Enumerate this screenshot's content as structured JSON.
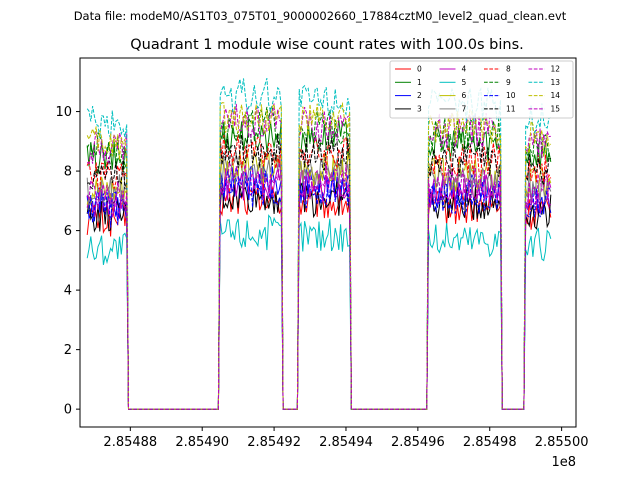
{
  "chart_data": {
    "type": "line",
    "suptitle": "Data file: modeM0/AS1T03_075T01_9000002660_17884cztM0_level2_quad_clean.evt",
    "title": "Quadrant 1 module wise count rates with 100.0s bins.",
    "xlabel": "",
    "ylabel": "",
    "x_offset_label": "1e8",
    "x_ticks": [
      "2.85488",
      "2.85490",
      "2.85492",
      "2.85494",
      "2.85496",
      "2.85498",
      "2.85500"
    ],
    "y_ticks": [
      "0",
      "2",
      "4",
      "6",
      "8",
      "10"
    ],
    "xlim": [
      2.854866,
      2.855004
    ],
    "ylim": [
      -0.6,
      11.8
    ],
    "grid": false,
    "legend_position": "top-right",
    "legend_ncol": 4,
    "active_segments": [
      [
        2.854868,
        2.854879
      ],
      [
        2.854905,
        2.854922
      ],
      [
        2.854927,
        2.854941
      ],
      [
        2.854963,
        2.854983
      ],
      [
        2.85499,
        2.854997
      ]
    ],
    "series": [
      {
        "name": "0",
        "color": "#ff0000",
        "dash": "solid",
        "level": 6.4
      },
      {
        "name": "1",
        "color": "#008000",
        "dash": "solid",
        "level": 8.4
      },
      {
        "name": "2",
        "color": "#0000ff",
        "dash": "solid",
        "level": 6.9
      },
      {
        "name": "3",
        "color": "#000000",
        "dash": "solid",
        "level": 6.5
      },
      {
        "name": "4",
        "color": "#bf00bf",
        "dash": "solid",
        "level": 6.9
      },
      {
        "name": "5",
        "color": "#00bfbf",
        "dash": "solid",
        "level": 5.4
      },
      {
        "name": "6",
        "color": "#bfbf00",
        "dash": "solid",
        "level": 7.4
      },
      {
        "name": "7",
        "color": "#808080",
        "dash": "solid",
        "level": 7.3
      },
      {
        "name": "8",
        "color": "#ff0000",
        "dash": "dashed",
        "level": 7.9
      },
      {
        "name": "9",
        "color": "#008000",
        "dash": "dashed",
        "level": 8.7
      },
      {
        "name": "10",
        "color": "#0000ff",
        "dash": "dashed",
        "level": 6.7
      },
      {
        "name": "11",
        "color": "#000000",
        "dash": "dashed",
        "level": 7.9
      },
      {
        "name": "12",
        "color": "#bf00bf",
        "dash": "dashed",
        "level": 8.8
      },
      {
        "name": "13",
        "color": "#00bfbf",
        "dash": "dashed",
        "level": 9.6
      },
      {
        "name": "14",
        "color": "#bfbf00",
        "dash": "dashed",
        "level": 8.9
      },
      {
        "name": "15",
        "color": "#bf00bf",
        "dash": "dashed",
        "level": 7.1
      }
    ]
  }
}
